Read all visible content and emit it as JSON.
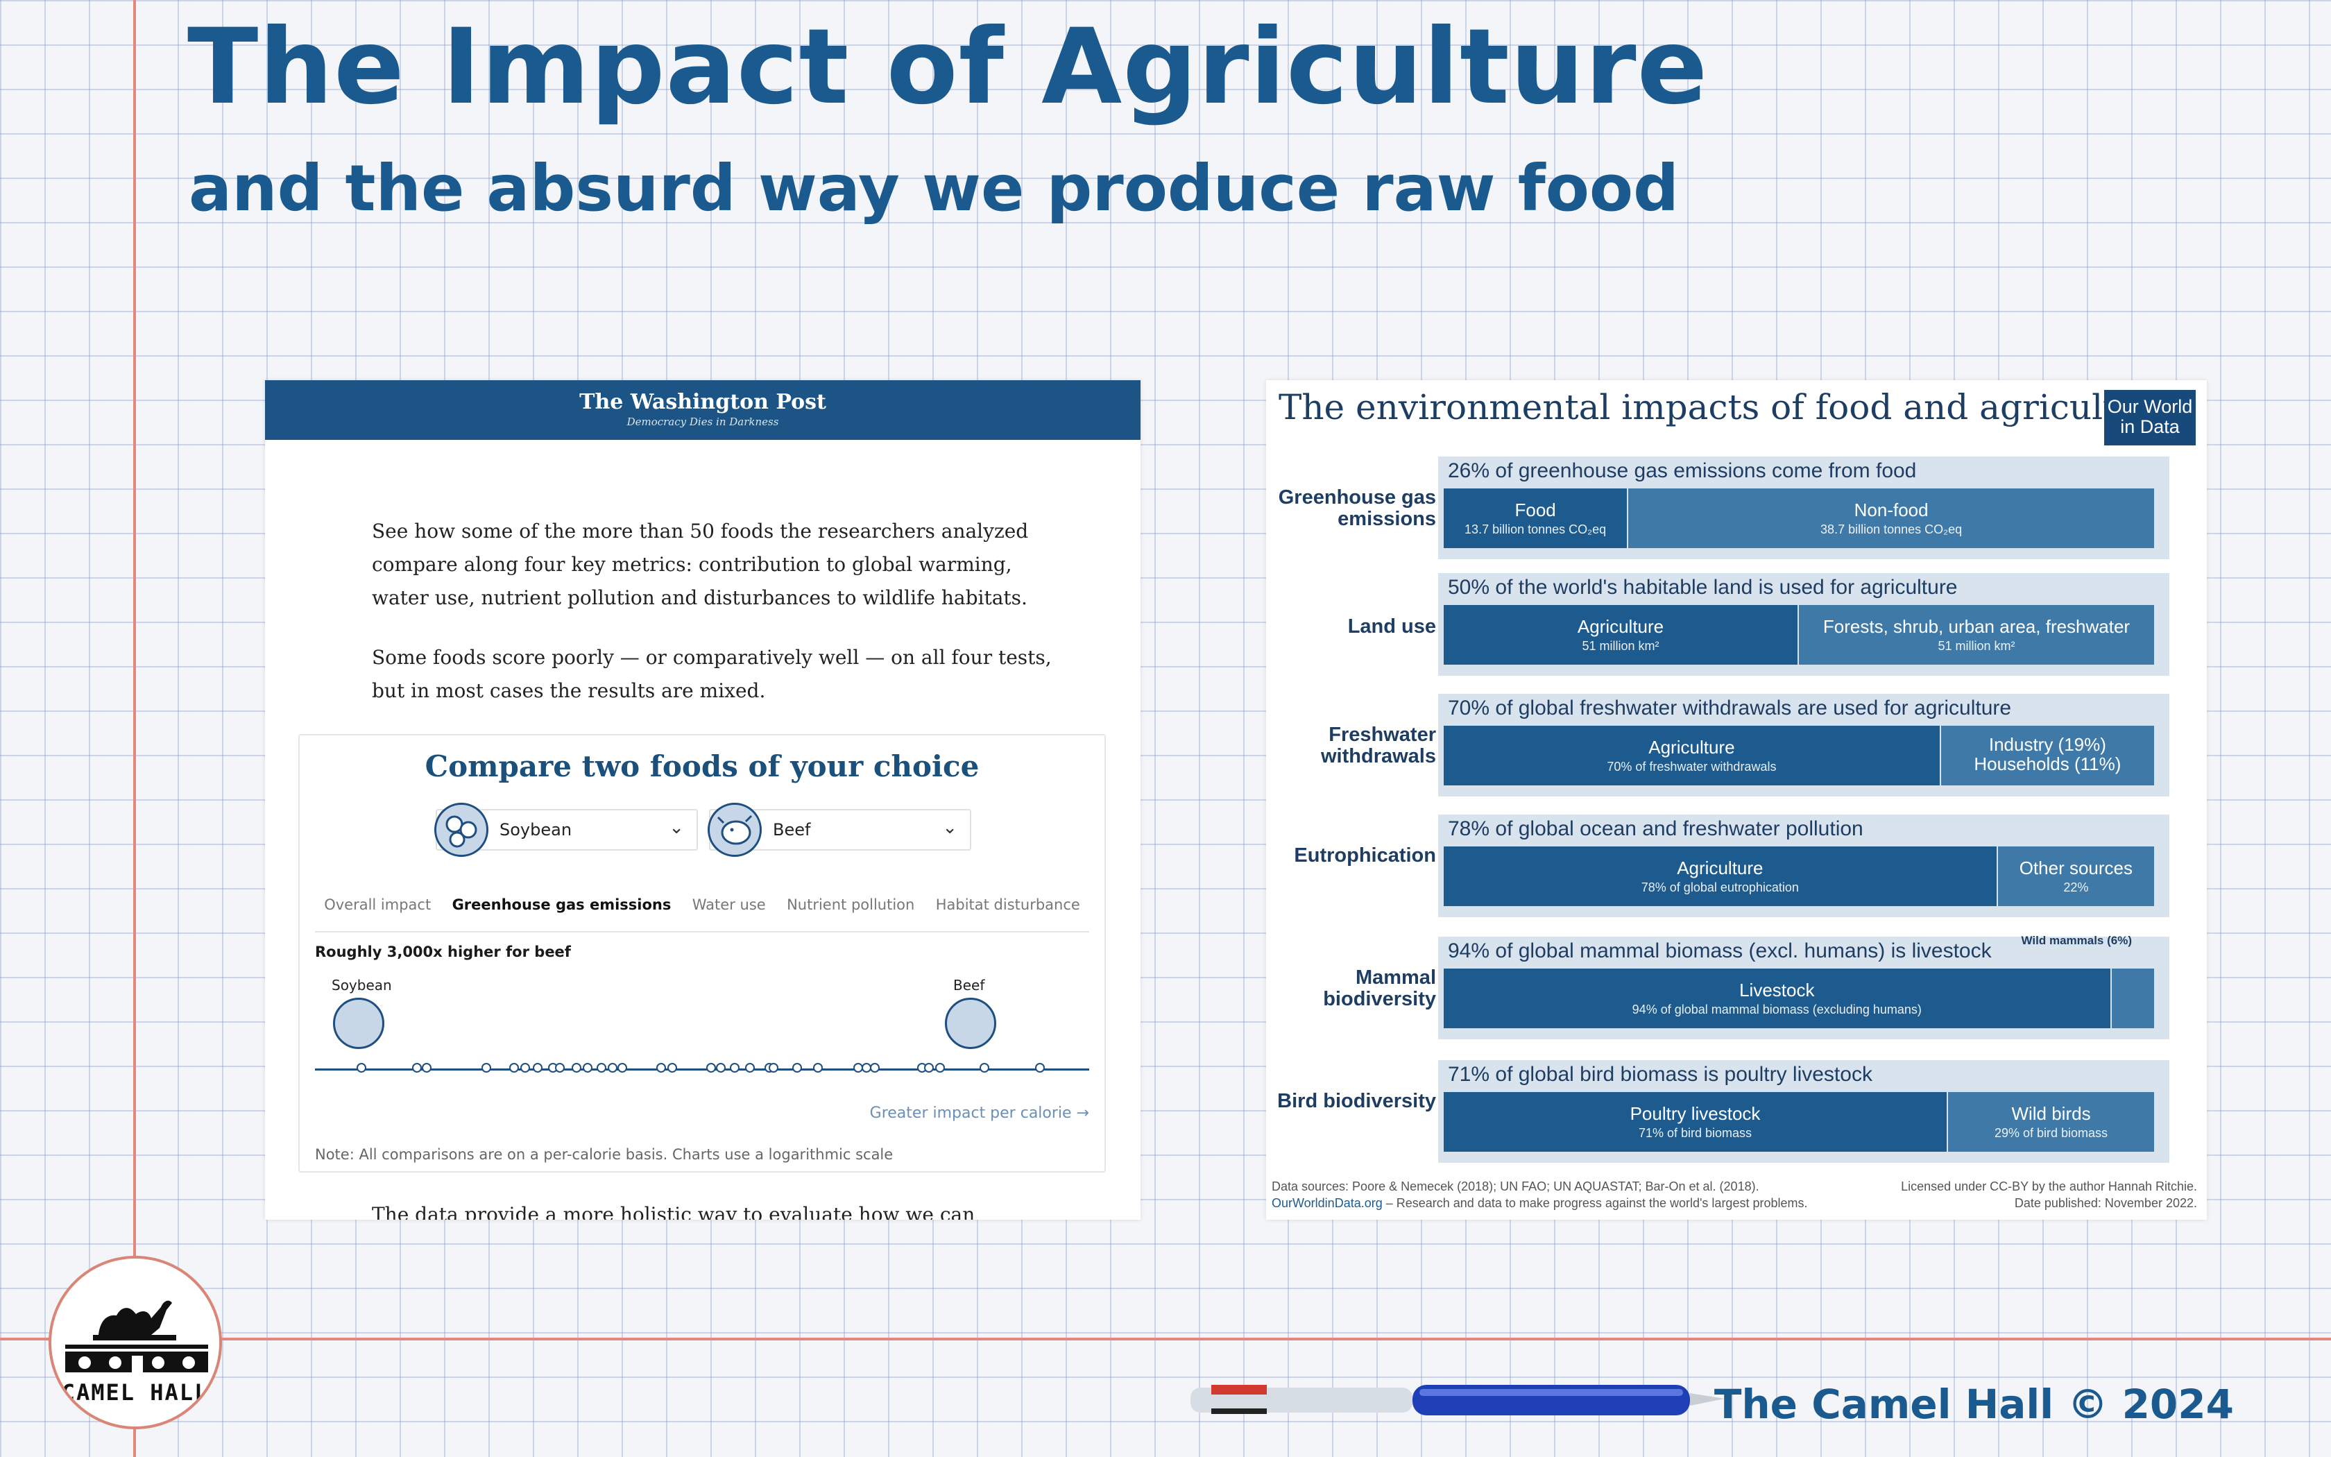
{
  "title": "The Impact of Agriculture",
  "subtitle": "and the absurd way we produce raw food",
  "wapo": {
    "logo": "The Washington Post",
    "tagline": "Democracy Dies in Darkness",
    "para1": "See how some of the more than 50 foods the researchers analyzed compare along four key metrics: contribution to global warming, water use, nutrient pollution and disturbances to wildlife habitats.",
    "para2": "Some foods score poorly — or comparatively well — on all four tests, but in most cases the results are mixed.",
    "compare_title": "Compare two foods of your choice",
    "select1": "Soybean",
    "select2": "Beef",
    "tabs": [
      "Overall impact",
      "Greenhouse gas emissions",
      "Water use",
      "Nutrient pollution",
      "Habitat disturbance"
    ],
    "headline": "Roughly 3,000x higher for beef",
    "point1": "Soybean",
    "point2": "Beef",
    "greater": "Greater impact per calorie →",
    "note": "Note: All comparisons are on a per-calorie basis. Charts use a logarithmic scale",
    "cut_text": "The data provide a more holistic way to evaluate how we can reduce"
  },
  "owid": {
    "title": "The environmental impacts of food and agriculture",
    "logo": "Our World in Data",
    "rows": [
      {
        "label": "Greenhouse gas emissions",
        "panel_title": "26% of greenhouse gas emissions come from food",
        "segments": [
          {
            "label": "Food",
            "sub": "13.7 billion tonnes CO₂eq",
            "share": 0.26
          },
          {
            "label": "Non-food",
            "sub": "38.7 billion tonnes CO₂eq",
            "share": 0.74
          }
        ]
      },
      {
        "label": "Land use",
        "panel_title": "50% of the world's habitable land is used for agriculture",
        "segments": [
          {
            "label": "Agriculture",
            "sub": "51 million km²",
            "share": 0.5
          },
          {
            "label": "Forests, shrub, urban area, freshwater",
            "sub": "51 million km²",
            "share": 0.5
          }
        ]
      },
      {
        "label": "Freshwater withdrawals",
        "panel_title": "70% of global freshwater withdrawals are used for agriculture",
        "segments": [
          {
            "label": "Agriculture",
            "sub": "70% of freshwater withdrawals",
            "share": 0.7
          },
          {
            "label": "Industry (19%) Households (11%)",
            "sub": "",
            "share": 0.3
          }
        ]
      },
      {
        "label": "Eutrophication",
        "panel_title": "78% of global ocean and freshwater pollution",
        "segments": [
          {
            "label": "Agriculture",
            "sub": "78% of global eutrophication",
            "share": 0.78
          },
          {
            "label": "Other sources",
            "sub": "22%",
            "share": 0.22
          }
        ]
      },
      {
        "label": "Mammal biodiversity",
        "panel_title": "94% of global mammal biomass (excl. humans) is livestock",
        "extra": "Wild mammals (6%)",
        "segments": [
          {
            "label": "Livestock",
            "sub": "94% of global mammal biomass (excluding humans)",
            "share": 0.94
          },
          {
            "label": "",
            "sub": "",
            "share": 0.06
          }
        ]
      },
      {
        "label": "Bird biodiversity",
        "panel_title": "71% of global bird biomass is poultry livestock",
        "segments": [
          {
            "label": "Poultry livestock",
            "sub": "71% of bird biomass",
            "share": 0.71
          },
          {
            "label": "Wild birds",
            "sub": "29% of bird biomass",
            "share": 0.29
          }
        ]
      }
    ],
    "sources": "Data sources: Poore & Nemecek (2018); UN FAO; UN AQUASTAT; Bar-On et al. (2018).",
    "site": "OurWorldinData.org",
    "site_tail": " – Research and data to make progress against the world's largest problems.",
    "license": "Licensed under CC-BY by the author Hannah Ritchie.",
    "date": "Date published: November 2022."
  },
  "logo_text": "CAMEL HALL",
  "copyright": "The Camel Hall © 2024",
  "colors": {
    "accent": "#1b5a8e",
    "wapo_header": "#1b5485",
    "owid_dark": "#1d5b8f",
    "owid_light": "#3f79a8"
  }
}
